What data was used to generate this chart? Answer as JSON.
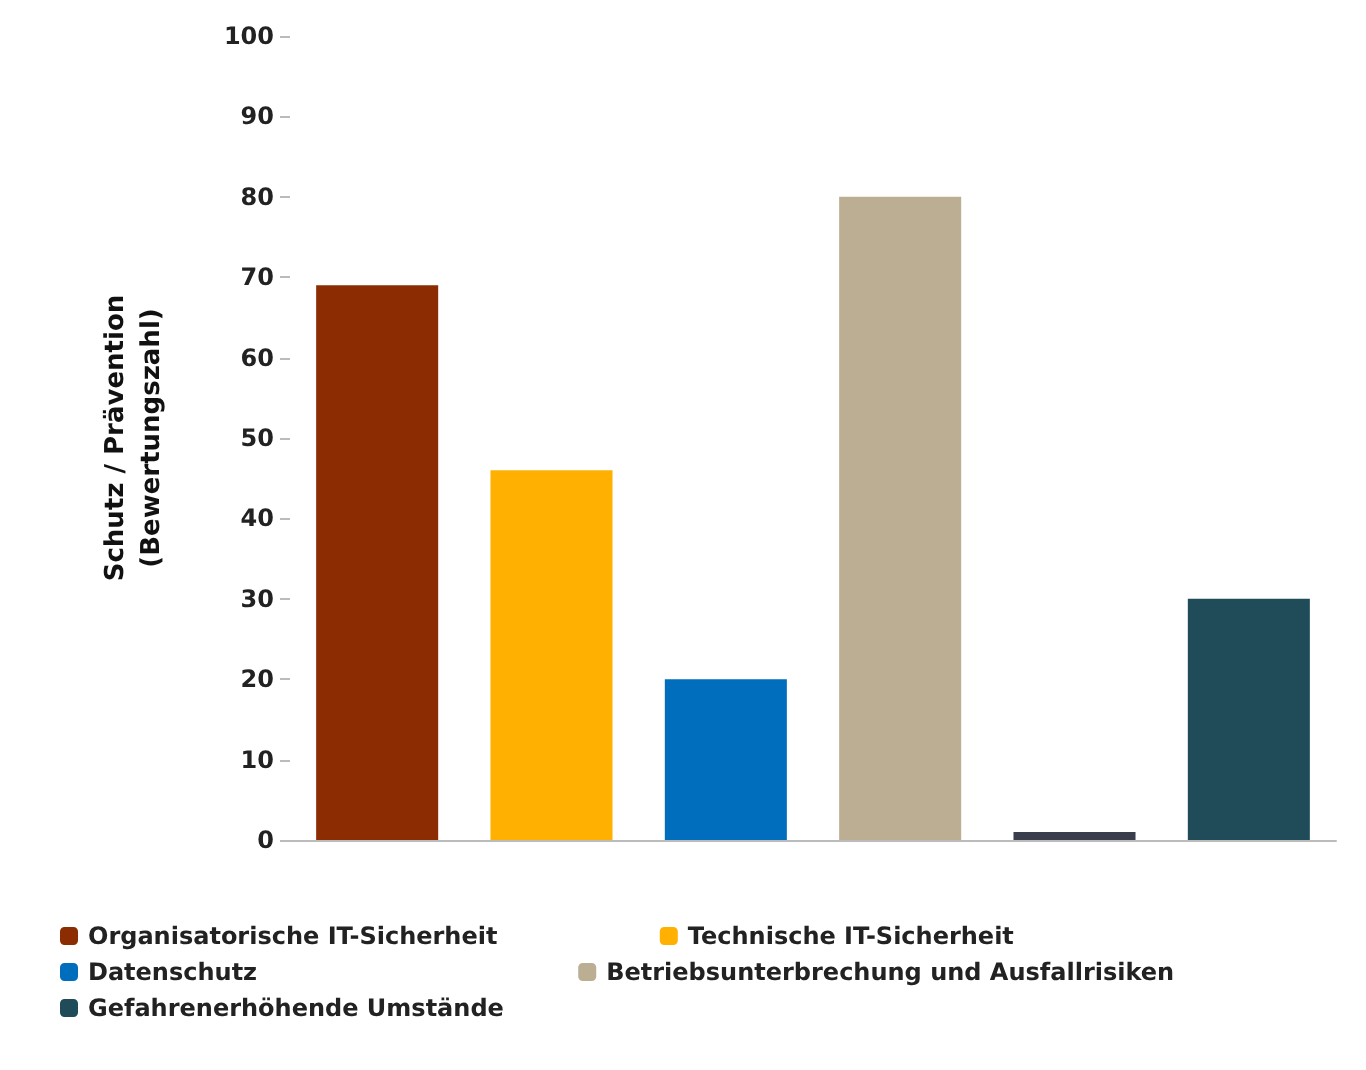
{
  "chart_data": {
    "type": "bar",
    "ylabel": "Schutz / Prävention\n(Bewertungszahl)",
    "categories": [
      null,
      null,
      null,
      null,
      null,
      null
    ],
    "series": [
      {
        "name": "Organisatorische IT-Sicherheit",
        "color": "#8b2c02",
        "values": [
          69,
          null,
          null,
          null,
          null,
          null
        ]
      },
      {
        "name": "Technische IT-Sicherheit",
        "color": "#ffb000",
        "values": [
          null,
          46,
          null,
          null,
          null,
          null
        ]
      },
      {
        "name": "Datenschutz",
        "color": "#006ebd",
        "values": [
          null,
          null,
          20,
          null,
          null,
          null
        ]
      },
      {
        "name": "Betriebsunterbrechung und Ausfallrisiken",
        "color": "#bcae92",
        "values": [
          null,
          null,
          null,
          80,
          null,
          null
        ]
      },
      {
        "color": "#3a3d4c",
        "values": [
          null,
          null,
          null,
          null,
          1,
          null
        ]
      },
      {
        "name": "Gefahrenerhöhende Umstände",
        "color": "#1f4c58",
        "values": [
          null,
          null,
          null,
          null,
          null,
          30
        ]
      }
    ],
    "ylim": [
      0,
      100
    ],
    "yticks": [
      0,
      10,
      20,
      30,
      40,
      50,
      60,
      70,
      80,
      90,
      100
    ],
    "grid": false,
    "legend": "bottom"
  }
}
